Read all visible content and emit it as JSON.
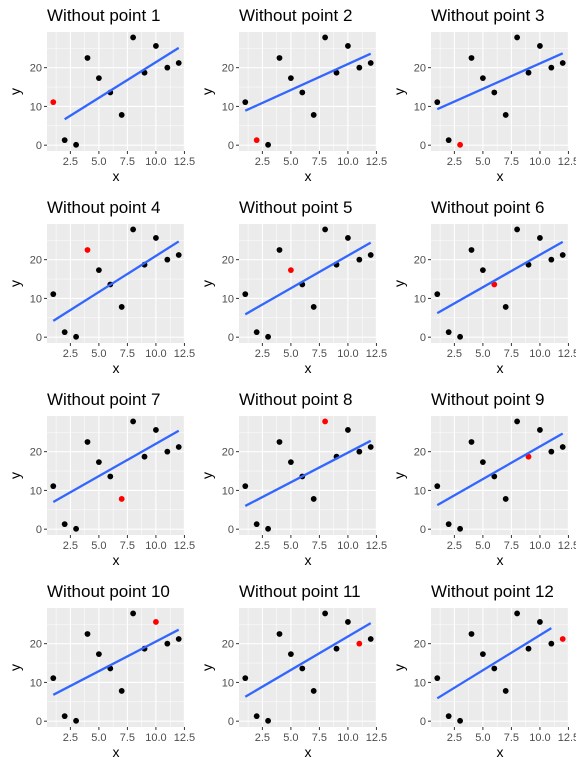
{
  "figure": {
    "panel_bg": "#ebebeb",
    "grid_major": "#ffffff",
    "point_color": "#000000",
    "removed_point_color": "#ff0000",
    "fit_line_color": "#3366ff"
  },
  "points": {
    "x": [
      1,
      2,
      3,
      4,
      5,
      6,
      7,
      8,
      9,
      10,
      11,
      12
    ],
    "y": [
      11.1,
      1.3,
      0.1,
      22.5,
      17.3,
      13.6,
      7.8,
      27.8,
      18.7,
      25.6,
      20.0,
      21.2
    ]
  },
  "chart_data": [
    {
      "type": "scatter",
      "title": "Without point 1",
      "xlabel": "x",
      "ylabel": "y",
      "xlim": [
        0.45,
        12.55
      ],
      "ylim": [
        -1.5,
        29.2
      ],
      "x_ticks": [
        "2.5",
        "5.0",
        "7.5",
        "10.0",
        "12.5"
      ],
      "y_ticks": [
        "0",
        "10",
        "20"
      ],
      "removed_index": 0,
      "fit_line": {
        "x": [
          2,
          12
        ],
        "y": [
          6.7,
          25.1
        ]
      },
      "grid": true
    },
    {
      "type": "scatter",
      "title": "Without point 2",
      "xlabel": "x",
      "ylabel": "y",
      "xlim": [
        0.45,
        12.55
      ],
      "ylim": [
        -1.5,
        29.2
      ],
      "x_ticks": [
        "2.5",
        "5.0",
        "7.5",
        "10.0",
        "12.5"
      ],
      "y_ticks": [
        "0",
        "10",
        "20"
      ],
      "removed_index": 1,
      "fit_line": {
        "x": [
          1,
          12
        ],
        "y": [
          8.9,
          23.6
        ]
      },
      "grid": true
    },
    {
      "type": "scatter",
      "title": "Without point 3",
      "xlabel": "x",
      "ylabel": "y",
      "xlim": [
        0.45,
        12.55
      ],
      "ylim": [
        -1.5,
        29.2
      ],
      "x_ticks": [
        "2.5",
        "5.0",
        "7.5",
        "10.0",
        "12.5"
      ],
      "y_ticks": [
        "0",
        "10",
        "20"
      ],
      "removed_index": 2,
      "fit_line": {
        "x": [
          1,
          12
        ],
        "y": [
          9.3,
          23.7
        ]
      },
      "grid": true
    },
    {
      "type": "scatter",
      "title": "Without point 4",
      "xlabel": "x",
      "ylabel": "y",
      "xlim": [
        0.45,
        12.55
      ],
      "ylim": [
        -1.5,
        29.2
      ],
      "x_ticks": [
        "2.5",
        "5.0",
        "7.5",
        "10.0",
        "12.5"
      ],
      "y_ticks": [
        "0",
        "10",
        "20"
      ],
      "removed_index": 3,
      "fit_line": {
        "x": [
          1,
          12
        ],
        "y": [
          4.2,
          24.7
        ]
      },
      "grid": true
    },
    {
      "type": "scatter",
      "title": "Without point 5",
      "xlabel": "x",
      "ylabel": "y",
      "xlim": [
        0.45,
        12.55
      ],
      "ylim": [
        -1.5,
        29.2
      ],
      "x_ticks": [
        "2.5",
        "5.0",
        "7.5",
        "10.0",
        "12.5"
      ],
      "y_ticks": [
        "0",
        "10",
        "20"
      ],
      "removed_index": 4,
      "fit_line": {
        "x": [
          1,
          12
        ],
        "y": [
          5.9,
          24.4
        ]
      },
      "grid": true
    },
    {
      "type": "scatter",
      "title": "Without point 6",
      "xlabel": "x",
      "ylabel": "y",
      "xlim": [
        0.45,
        12.55
      ],
      "ylim": [
        -1.5,
        29.2
      ],
      "x_ticks": [
        "2.5",
        "5.0",
        "7.5",
        "10.0",
        "12.5"
      ],
      "y_ticks": [
        "0",
        "10",
        "20"
      ],
      "removed_index": 5,
      "fit_line": {
        "x": [
          1,
          12
        ],
        "y": [
          6.2,
          24.6
        ]
      },
      "grid": true
    },
    {
      "type": "scatter",
      "title": "Without point 7",
      "xlabel": "x",
      "ylabel": "y",
      "xlim": [
        0.45,
        12.55
      ],
      "ylim": [
        -1.5,
        29.2
      ],
      "x_ticks": [
        "2.5",
        "5.0",
        "7.5",
        "10.0",
        "12.5"
      ],
      "y_ticks": [
        "0",
        "10",
        "20"
      ],
      "removed_index": 6,
      "fit_line": {
        "x": [
          1,
          12
        ],
        "y": [
          7.0,
          25.4
        ]
      },
      "grid": true
    },
    {
      "type": "scatter",
      "title": "Without point 8",
      "xlabel": "x",
      "ylabel": "y",
      "xlim": [
        0.45,
        12.55
      ],
      "ylim": [
        -1.5,
        29.2
      ],
      "x_ticks": [
        "2.5",
        "5.0",
        "7.5",
        "10.0",
        "12.5"
      ],
      "y_ticks": [
        "0",
        "10",
        "20"
      ],
      "removed_index": 7,
      "fit_line": {
        "x": [
          1,
          12
        ],
        "y": [
          6.0,
          22.8
        ]
      },
      "grid": true
    },
    {
      "type": "scatter",
      "title": "Without point 9",
      "xlabel": "x",
      "ylabel": "y",
      "xlim": [
        0.45,
        12.55
      ],
      "ylim": [
        -1.5,
        29.2
      ],
      "x_ticks": [
        "2.5",
        "5.0",
        "7.5",
        "10.0",
        "12.5"
      ],
      "y_ticks": [
        "0",
        "10",
        "20"
      ],
      "removed_index": 8,
      "fit_line": {
        "x": [
          1,
          12
        ],
        "y": [
          6.2,
          24.7
        ]
      },
      "grid": true
    },
    {
      "type": "scatter",
      "title": "Without point 10",
      "xlabel": "x",
      "ylabel": "y",
      "xlim": [
        0.45,
        12.55
      ],
      "ylim": [
        -1.5,
        29.2
      ],
      "x_ticks": [
        "2.5",
        "5.0",
        "7.5",
        "10.0",
        "12.5"
      ],
      "y_ticks": [
        "0",
        "10",
        "20"
      ],
      "removed_index": 9,
      "fit_line": {
        "x": [
          1,
          12
        ],
        "y": [
          6.8,
          23.6
        ]
      },
      "grid": true
    },
    {
      "type": "scatter",
      "title": "Without point 11",
      "xlabel": "x",
      "ylabel": "y",
      "xlim": [
        0.45,
        12.55
      ],
      "ylim": [
        -1.5,
        29.2
      ],
      "x_ticks": [
        "2.5",
        "5.0",
        "7.5",
        "10.0",
        "12.5"
      ],
      "y_ticks": [
        "0",
        "10",
        "20"
      ],
      "removed_index": 10,
      "fit_line": {
        "x": [
          1,
          12
        ],
        "y": [
          6.3,
          25.3
        ]
      },
      "grid": true
    },
    {
      "type": "scatter",
      "title": "Without point 12",
      "xlabel": "x",
      "ylabel": "y",
      "xlim": [
        0.45,
        12.55
      ],
      "ylim": [
        -1.5,
        29.2
      ],
      "x_ticks": [
        "2.5",
        "5.0",
        "7.5",
        "10.0",
        "12.5"
      ],
      "y_ticks": [
        "0",
        "10",
        "20"
      ],
      "removed_index": 11,
      "fit_line": {
        "x": [
          1,
          11
        ],
        "y": [
          5.9,
          24.0
        ]
      },
      "grid": true
    }
  ]
}
